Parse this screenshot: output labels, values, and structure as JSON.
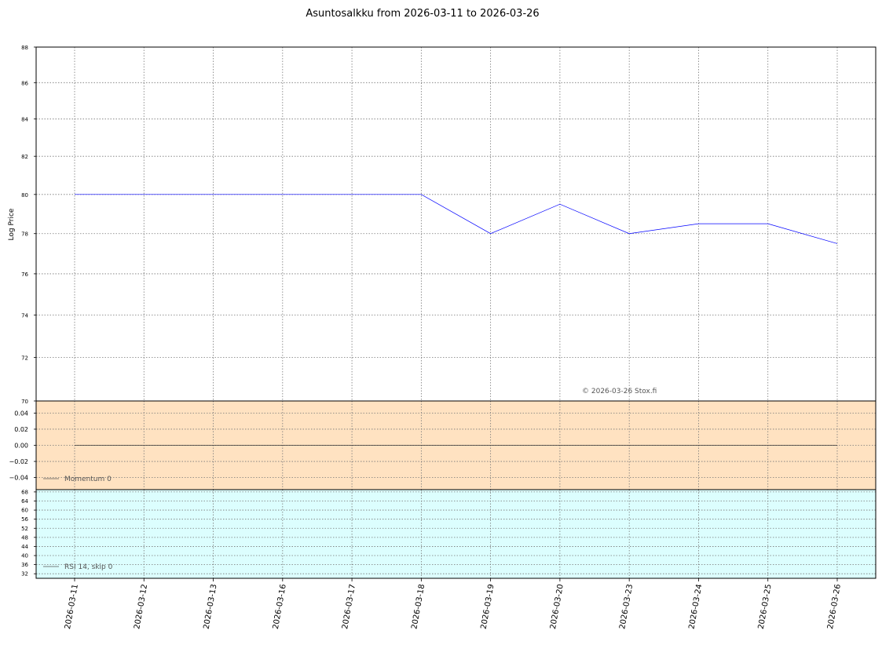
{
  "chart_data": [
    {
      "type": "line",
      "title": "Asuntosalkku from 2026-03-11 to 2026-03-26",
      "ylabel": "Log Price",
      "xlabel": "",
      "categories": [
        "2026-03-11",
        "2026-03-12",
        "2026-03-13",
        "2026-03-16",
        "2026-03-17",
        "2026-03-18",
        "2026-03-19",
        "2026-03-20",
        "2026-03-23",
        "2026-03-24",
        "2026-03-25",
        "2026-03-26"
      ],
      "series": [
        {
          "values": [
            80.0,
            80.0,
            80.0,
            80.0,
            80.0,
            80.0,
            78.0,
            79.5,
            78.0,
            78.5,
            78.5,
            77.5
          ],
          "color": "#0000ff"
        }
      ],
      "ylim": [
        70,
        88
      ],
      "yticks": [
        "88",
        "86",
        "84",
        "82",
        "80",
        "78",
        "76",
        "74",
        "72",
        "70"
      ],
      "scale": "log",
      "grid": true,
      "annotation": "© 2026-03-26 Stox.fi"
    },
    {
      "type": "line",
      "series": [
        {
          "name": "Momentum 0",
          "values": [
            0,
            0,
            0,
            0,
            0,
            0,
            0,
            0,
            0,
            0,
            0,
            0
          ],
          "color": "#333333"
        }
      ],
      "ylim": [
        -0.055,
        0.055
      ],
      "yticks": [
        "0.04",
        "0.02",
        "0.00",
        "−0.02",
        "−0.04"
      ],
      "background": "#ffe2c1",
      "legend_position": "lower-left",
      "grid": true
    },
    {
      "type": "line",
      "series": [
        {
          "name": "RSI 14, skip 0",
          "values": [],
          "color": "#555555"
        }
      ],
      "ylim": [
        30,
        69
      ],
      "yticks": [
        "68",
        "64",
        "60",
        "56",
        "52",
        "48",
        "44",
        "40",
        "36",
        "32"
      ],
      "background": "#dcfefe",
      "legend_position": "lower-left",
      "grid": true
    }
  ]
}
